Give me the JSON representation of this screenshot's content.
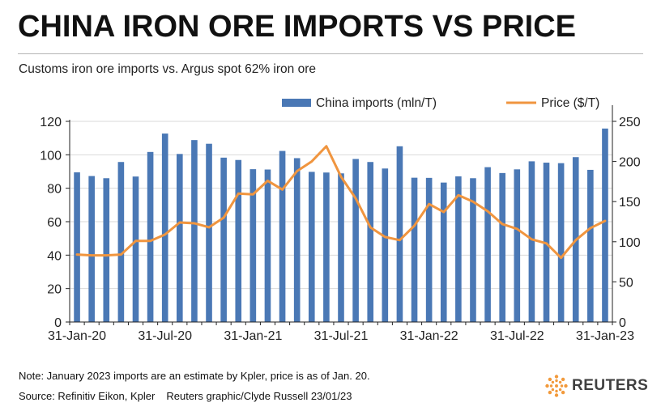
{
  "title": "CHINA IRON ORE IMPORTS VS PRICE",
  "subtitle": "Customs iron ore imports vs. Argus spot 62% iron ore",
  "note": "Note: January 2023 imports are an estimate by Kpler, price is as of Jan. 20.",
  "source": "Source: Refinitiv Eikon, Kpler",
  "credit": "Reuters graphic/Clyde Russell 23/01/23",
  "logo_text": "REUTERS",
  "colors": {
    "bars": "#4a78b5",
    "line": "#f0953f",
    "grid": "#d9d9d9",
    "axis": "#222222"
  },
  "chart_data": {
    "type": "bar+line",
    "x_tick_labels": [
      "31-Jan-20",
      "31-Jul-20",
      "31-Jan-21",
      "31-Jul-21",
      "31-Jan-22",
      "31-Jul-22",
      "31-Jan-23"
    ],
    "x_tick_month_index": [
      0,
      6,
      12,
      18,
      24,
      30,
      36
    ],
    "left_axis": {
      "ylim": [
        0,
        120
      ],
      "ticks": [
        0,
        20,
        40,
        60,
        80,
        100,
        120
      ]
    },
    "right_axis": {
      "ylim": [
        0,
        250
      ],
      "ticks": [
        0,
        50,
        100,
        150,
        200,
        250
      ]
    },
    "legend_position": "top",
    "grid": true,
    "series": [
      {
        "name": "China imports (mln/T)",
        "type": "bar",
        "axis": "left",
        "values": [
          89.5,
          87.3,
          86.0,
          95.7,
          87.0,
          101.7,
          112.7,
          100.5,
          108.8,
          106.6,
          98.3,
          96.9,
          91.4,
          91.2,
          102.3,
          98.0,
          89.8,
          89.4,
          88.9,
          97.5,
          95.7,
          91.8,
          105.1,
          86.3,
          86.2,
          83.4,
          87.1,
          86.0,
          92.6,
          89.1,
          91.3,
          96.1,
          95.3,
          95.0,
          98.6,
          91.0,
          115.7
        ]
      },
      {
        "name": "Price ($/T)",
        "type": "line",
        "axis": "right",
        "values": [
          84,
          83,
          83,
          84,
          101,
          101,
          109,
          124,
          123,
          118,
          130,
          160,
          159,
          176,
          165,
          188,
          200,
          219,
          181,
          154,
          118,
          106,
          102,
          120,
          147,
          137,
          158,
          150,
          138,
          122,
          116,
          103,
          98,
          80,
          102,
          117,
          126
        ]
      }
    ]
  }
}
